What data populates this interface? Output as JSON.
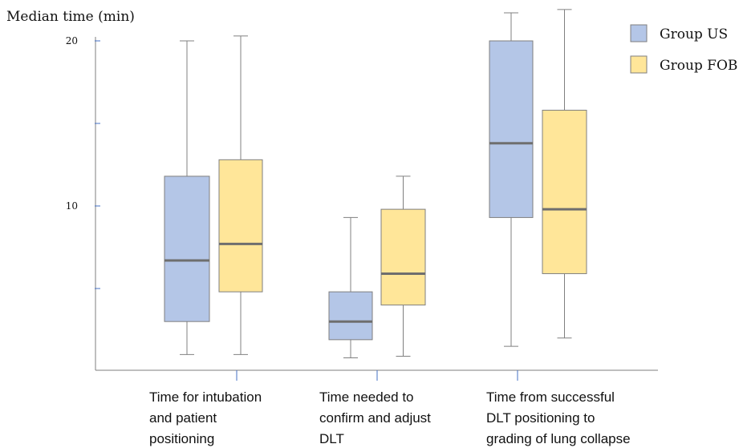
{
  "chart_data": {
    "type": "box",
    "ylabel": "Median time (min)",
    "yticks": [
      {
        "value": 20,
        "label": "20"
      },
      {
        "value": 15,
        "label": ""
      },
      {
        "value": 10,
        "label": "10"
      },
      {
        "value": 5,
        "label": ""
      }
    ],
    "ylim": [
      0,
      20
    ],
    "categories": [
      {
        "lines": [
          "Time for intubation",
          "and patient",
          "positioning"
        ]
      },
      {
        "lines": [
          "Time needed to",
          "confirm and adjust",
          "DLT"
        ]
      },
      {
        "lines": [
          "Time from successful",
          "DLT positioning to",
          "grading of lung collapse"
        ]
      }
    ],
    "series": [
      {
        "name": "Group US",
        "color": "#b4c6e7",
        "boxes": [
          {
            "min": 1.0,
            "q1": 3.0,
            "median": 6.7,
            "q3": 11.8,
            "max": 20.0
          },
          {
            "min": 0.8,
            "q1": 1.9,
            "median": 3.0,
            "q3": 4.8,
            "max": 9.3
          },
          {
            "min": 1.5,
            "q1": 9.3,
            "median": 13.8,
            "q3": 20.0,
            "max": 21.7
          }
        ]
      },
      {
        "name": "Group FOB",
        "color": "#ffe699",
        "boxes": [
          {
            "min": 1.0,
            "q1": 4.8,
            "median": 7.7,
            "q3": 12.8,
            "max": 20.3
          },
          {
            "min": 0.9,
            "q1": 4.0,
            "median": 5.9,
            "q3": 9.8,
            "max": 11.8
          },
          {
            "min": 2.0,
            "q1": 5.9,
            "median": 9.8,
            "q3": 15.8,
            "max": 21.9
          }
        ]
      }
    ],
    "legend": {
      "position": "top-right"
    },
    "grid": false
  }
}
